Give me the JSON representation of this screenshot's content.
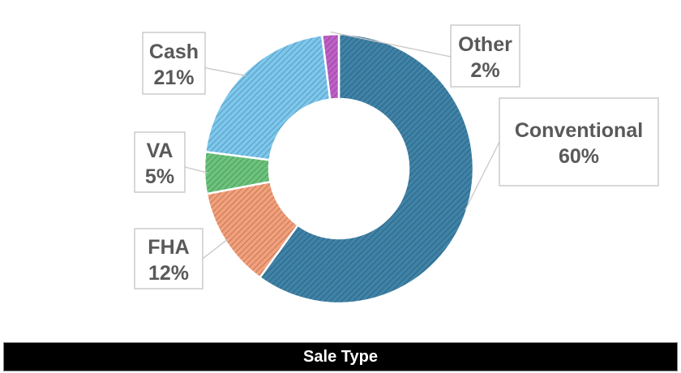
{
  "chart_data": {
    "type": "pie",
    "donut": true,
    "title": "Sale Type",
    "legend": "none",
    "categories": [
      "Conventional",
      "FHA",
      "VA",
      "Cash",
      "Other"
    ],
    "values": [
      60,
      12,
      5,
      21,
      2
    ],
    "value_labels": [
      "60%",
      "12%",
      "5%",
      "21%",
      "2%"
    ],
    "colors": [
      "#3f83a8",
      "#f4a07a",
      "#6cc47c",
      "#7cc8ef",
      "#c060c8"
    ],
    "fill_pattern": "diagonal-hatch"
  }
}
